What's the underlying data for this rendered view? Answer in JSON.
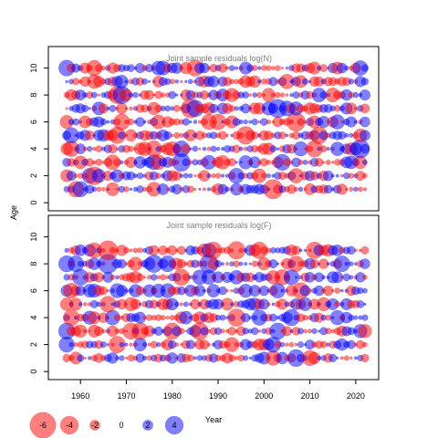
{
  "chart_data": {
    "type": "scatter",
    "subtype": "bubble",
    "xlabel": "Year",
    "ylabel": "Age",
    "xlim": [
      1953,
      2025
    ],
    "ylim": [
      -0.6,
      11.6
    ],
    "x_ticks": [
      1960,
      1970,
      1980,
      1990,
      2000,
      2010,
      2020
    ],
    "y_ticks": [
      0,
      2,
      4,
      6,
      8,
      10
    ],
    "years": [
      1957,
      2022
    ],
    "colors": {
      "positive": "#0000ff",
      "negative": "#ff0000",
      "fill_alpha": 0.5
    },
    "panels": [
      {
        "title": "Joint sample residuals log(N)",
        "ages": [
          1,
          10
        ],
        "seed": 7
      },
      {
        "title": "Joint sample residuals log(F)",
        "ages": [
          1,
          9
        ],
        "seed": 19
      }
    ],
    "legend": {
      "position": "bottom-left",
      "values": [
        -6,
        -4,
        -2,
        0,
        2,
        4
      ],
      "labels": [
        "-6",
        "-4",
        "-2",
        "0",
        "2",
        "4"
      ]
    }
  }
}
